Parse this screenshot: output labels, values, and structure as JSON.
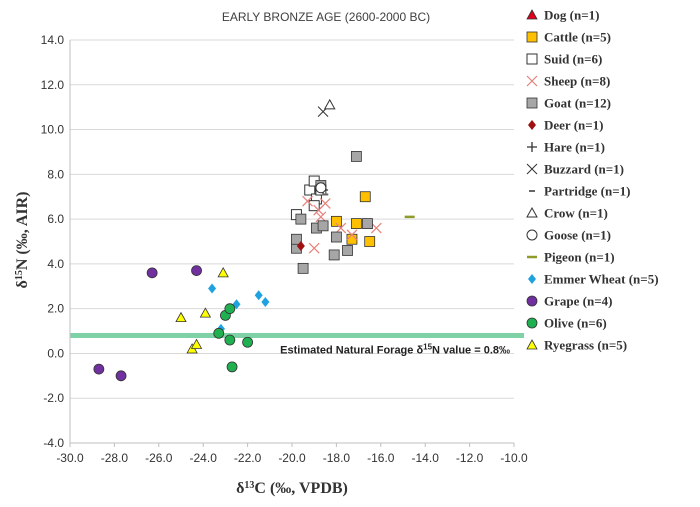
{
  "chart_data": {
    "type": "scatter",
    "title": "EARLY BRONZE AGE (2600-2000 BC)",
    "xlabel": "δ13C (‰, VPDB)",
    "ylabel": "δ15N (‰, AIR)",
    "xlim": [
      -30,
      -10
    ],
    "ylim": [
      -4,
      14
    ],
    "x_ticks": [
      "-30.0",
      "-28.0",
      "-26.0",
      "-24.0",
      "-22.0",
      "-20.0",
      "-18.0",
      "-16.0",
      "-14.0",
      "-12.0",
      "-10.0"
    ],
    "y_ticks": [
      "14.0",
      "12.0",
      "10.0",
      "8.0",
      "6.0",
      "4.0",
      "2.0",
      "0.0",
      "-2.0",
      "-4.0"
    ],
    "gridlines": "horizontal",
    "legend_position": "right",
    "reference_line": {
      "label": "Estimated Natural Forage δ15N value = 0.8‰",
      "y": 0.8,
      "color": "#7fd1a6"
    },
    "series": [
      {
        "name": "Dog (n=1)",
        "marker": "triangle",
        "color": "#e0001b",
        "points": [
          [
            -19.1,
            7.4
          ]
        ]
      },
      {
        "name": "Cattle (n=5)",
        "marker": "square",
        "color": "#ffc000",
        "points": [
          [
            -18.0,
            5.9
          ],
          [
            -17.3,
            5.1
          ],
          [
            -17.1,
            5.8
          ],
          [
            -16.7,
            7.0
          ],
          [
            -16.5,
            5.0
          ]
        ]
      },
      {
        "name": "Suid (n=6)",
        "marker": "square-open",
        "color": "#333333",
        "points": [
          [
            -19.2,
            7.3
          ],
          [
            -19.0,
            7.7
          ],
          [
            -18.9,
            6.9
          ],
          [
            -19.0,
            6.6
          ],
          [
            -18.7,
            7.3
          ],
          [
            -19.8,
            6.2
          ]
        ]
      },
      {
        "name": "Sheep (n=8)",
        "marker": "x",
        "color": "#e8807a",
        "points": [
          [
            -19.0,
            4.7
          ],
          [
            -18.7,
            6.1
          ],
          [
            -18.8,
            6.4
          ],
          [
            -17.8,
            5.6
          ],
          [
            -17.3,
            5.3
          ],
          [
            -16.2,
            5.6
          ],
          [
            -19.3,
            6.8
          ],
          [
            -18.5,
            6.7
          ]
        ]
      },
      {
        "name": "Goat (n=12)",
        "marker": "square",
        "color": "#a6a6a6",
        "points": [
          [
            -19.8,
            4.7
          ],
          [
            -19.8,
            5.1
          ],
          [
            -19.6,
            6.0
          ],
          [
            -19.5,
            3.8
          ],
          [
            -18.9,
            5.6
          ],
          [
            -18.7,
            7.5
          ],
          [
            -18.6,
            5.7
          ],
          [
            -18.0,
            5.2
          ],
          [
            -18.1,
            4.4
          ],
          [
            -17.5,
            4.6
          ],
          [
            -17.1,
            8.8
          ],
          [
            -16.6,
            5.8
          ]
        ]
      },
      {
        "name": "Deer (n=1)",
        "marker": "diamond",
        "color": "#a01010",
        "points": [
          [
            -19.6,
            4.8
          ]
        ]
      },
      {
        "name": "Hare (n=1)",
        "marker": "plus",
        "color": "#333333",
        "points": [
          [
            -18.6,
            7.3
          ]
        ]
      },
      {
        "name": "Buzzard (n=1)",
        "marker": "x-dark",
        "color": "#333333",
        "points": [
          [
            -18.6,
            10.8
          ]
        ]
      },
      {
        "name": "Partridge (n=1)",
        "marker": "dash",
        "color": "#666666",
        "points": [
          [
            -18.5,
            7.1
          ]
        ]
      },
      {
        "name": "Crow (n=1)",
        "marker": "triangle-open",
        "color": "#333333",
        "points": [
          [
            -18.3,
            11.1
          ]
        ]
      },
      {
        "name": "Goose (n=1)",
        "marker": "circle-open",
        "color": "#333333",
        "points": [
          [
            -18.7,
            7.4
          ]
        ]
      },
      {
        "name": "Pigeon (n=1)",
        "marker": "dash-thick",
        "color": "#8e9a2a",
        "points": [
          [
            -14.7,
            6.1
          ]
        ]
      },
      {
        "name": "Emmer Wheat (n=5)",
        "marker": "diamond",
        "color": "#1fa2e0",
        "points": [
          [
            -23.6,
            2.9
          ],
          [
            -23.2,
            1.1
          ],
          [
            -22.5,
            2.2
          ],
          [
            -21.5,
            2.6
          ],
          [
            -21.2,
            2.3
          ]
        ]
      },
      {
        "name": "Grape (n=4)",
        "marker": "circle",
        "color": "#7030a0",
        "points": [
          [
            -28.7,
            -0.7
          ],
          [
            -27.7,
            -1.0
          ],
          [
            -26.3,
            3.6
          ],
          [
            -24.3,
            3.7
          ]
        ]
      },
      {
        "name": "Olive (n=6)",
        "marker": "circle",
        "color": "#1fb050",
        "points": [
          [
            -23.3,
            0.9
          ],
          [
            -23.0,
            1.7
          ],
          [
            -22.8,
            2.0
          ],
          [
            -22.8,
            0.6
          ],
          [
            -22.0,
            0.5
          ],
          [
            -22.7,
            -0.6
          ]
        ]
      },
      {
        "name": "Ryegrass (n=5)",
        "marker": "triangle",
        "color": "#ffff00",
        "points": [
          [
            -25.0,
            1.6
          ],
          [
            -24.5,
            0.2
          ],
          [
            -24.3,
            0.4
          ],
          [
            -23.9,
            1.8
          ],
          [
            -23.1,
            3.6
          ]
        ]
      }
    ]
  }
}
